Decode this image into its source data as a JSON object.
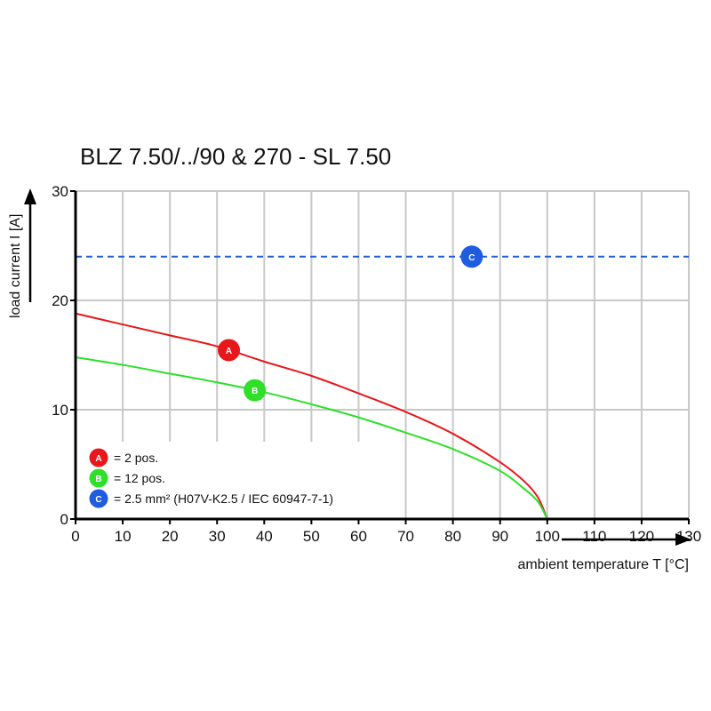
{
  "chart_data": {
    "type": "line",
    "title": "BLZ 7.50/../90 & 270 - SL 7.50",
    "xlabel": "ambient temperature T [°C]",
    "ylabel": "load current I [A]",
    "xlim": [
      0,
      130
    ],
    "ylim": [
      0,
      30
    ],
    "xticks": [
      0,
      10,
      20,
      30,
      40,
      50,
      60,
      70,
      80,
      90,
      100,
      110,
      120,
      130
    ],
    "yticks": [
      0,
      10,
      20,
      30
    ],
    "grid": true,
    "legend_position": "bottom-left",
    "series": [
      {
        "name": "A",
        "legend": "= 2 pos.",
        "color": "#e8171b",
        "style": "solid",
        "x": [
          0,
          10,
          20,
          30,
          40,
          50,
          60,
          70,
          80,
          90,
          95,
          98,
          100
        ],
        "y": [
          18.8,
          17.8,
          16.8,
          15.8,
          14.4,
          13.1,
          11.5,
          9.8,
          7.8,
          5.2,
          3.5,
          2.0,
          0
        ],
        "marker_x": 32.5
      },
      {
        "name": "B",
        "legend": "= 12 pos.",
        "color": "#2ee02a",
        "style": "solid",
        "x": [
          0,
          10,
          20,
          30,
          40,
          50,
          60,
          70,
          80,
          90,
          95,
          98,
          100
        ],
        "y": [
          14.8,
          14.1,
          13.3,
          12.5,
          11.6,
          10.5,
          9.3,
          7.9,
          6.4,
          4.4,
          2.8,
          1.6,
          0
        ],
        "marker_x": 38
      },
      {
        "name": "C",
        "legend": "= 2.5 mm² (H07V-K2.5 / IEC 60947-7-1)",
        "color": "#1f5ce0",
        "style": "dashed",
        "x": [
          0,
          130
        ],
        "y": [
          24,
          24
        ],
        "marker_x": 84
      }
    ]
  }
}
